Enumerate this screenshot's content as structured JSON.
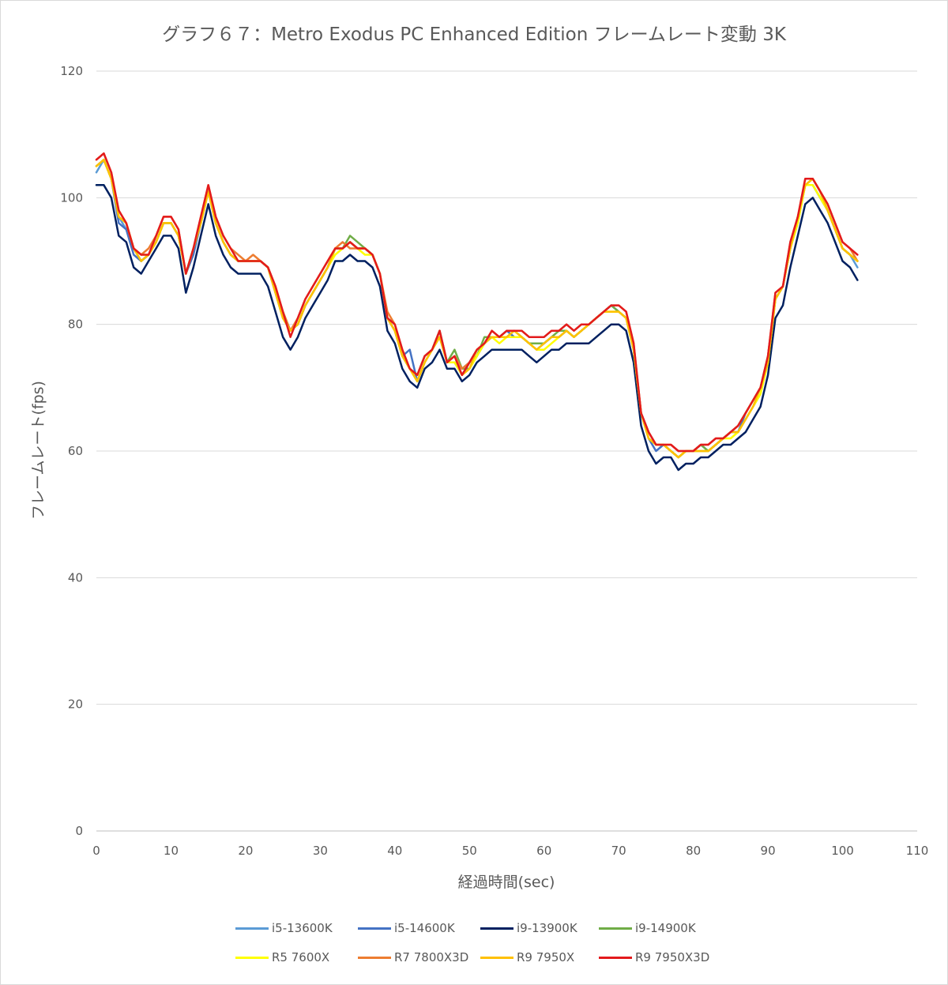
{
  "chart_data": {
    "type": "line",
    "title": "グラフ６７：Metro Exodus PC Enhanced Edition フレームレート変動 3K",
    "xlabel": "経過時間(sec)",
    "ylabel": "フレームレート(fps)",
    "xlim": [
      0,
      110
    ],
    "ylim": [
      0,
      120
    ],
    "xticks": [
      "0",
      "10",
      "20",
      "30",
      "40",
      "50",
      "60",
      "70",
      "80",
      "90",
      "100",
      "110"
    ],
    "yticks": [
      "0",
      "20",
      "40",
      "60",
      "80",
      "100",
      "120"
    ],
    "grid": "horizontal",
    "legend_position": "bottom",
    "x": [
      0,
      1,
      2,
      3,
      4,
      5,
      6,
      7,
      8,
      9,
      10,
      11,
      12,
      13,
      14,
      15,
      16,
      17,
      18,
      19,
      20,
      21,
      22,
      23,
      24,
      25,
      26,
      27,
      28,
      29,
      30,
      31,
      32,
      33,
      34,
      35,
      36,
      37,
      38,
      39,
      40,
      41,
      42,
      43,
      44,
      45,
      46,
      47,
      48,
      49,
      50,
      51,
      52,
      53,
      54,
      55,
      56,
      57,
      58,
      59,
      60,
      61,
      62,
      63,
      64,
      65,
      66,
      67,
      68,
      69,
      70,
      71,
      72,
      73,
      74,
      75,
      76,
      77,
      78,
      79,
      80,
      81,
      82,
      83,
      84,
      85,
      86,
      87,
      88,
      89,
      90,
      91,
      92,
      93,
      94,
      95,
      96,
      97,
      98,
      99,
      100,
      101,
      102
    ],
    "series": [
      {
        "name": "i5-13600K",
        "color": "#5b9bd5",
        "values": [
          104,
          106,
          103,
          97,
          95,
          92,
          90,
          91,
          93,
          96,
          96,
          94,
          88,
          92,
          96,
          101,
          96,
          93,
          91,
          90,
          90,
          90,
          90,
          89,
          85,
          81,
          79,
          80,
          83,
          85,
          87,
          89,
          92,
          92,
          93,
          92,
          92,
          91,
          88,
          81,
          79,
          75,
          73,
          72,
          75,
          76,
          79,
          74,
          75,
          73,
          74,
          76,
          77,
          78,
          78,
          79,
          78,
          78,
          77,
          76,
          77,
          78,
          78,
          79,
          78,
          79,
          80,
          81,
          82,
          83,
          82,
          81,
          76,
          66,
          63,
          61,
          61,
          60,
          59,
          60,
          60,
          61,
          60,
          61,
          62,
          63,
          63,
          65,
          67,
          69,
          74,
          84,
          86,
          92,
          96,
          102,
          102,
          100,
          98,
          95,
          92,
          91,
          89
        ]
      },
      {
        "name": "i5-14600K",
        "color": "#4472c4",
        "values": [
          105,
          106,
          103,
          96,
          95,
          91,
          90,
          91,
          93,
          96,
          96,
          94,
          88,
          91,
          96,
          101,
          96,
          93,
          91,
          90,
          90,
          90,
          90,
          89,
          85,
          81,
          79,
          80,
          83,
          85,
          87,
          89,
          92,
          92,
          93,
          92,
          92,
          91,
          88,
          81,
          79,
          75,
          76,
          71,
          74,
          76,
          78,
          74,
          74,
          72,
          74,
          75,
          77,
          78,
          78,
          79,
          78,
          78,
          77,
          77,
          77,
          78,
          78,
          79,
          78,
          79,
          80,
          81,
          82,
          83,
          82,
          81,
          76,
          66,
          62,
          60,
          61,
          60,
          59,
          60,
          60,
          60,
          60,
          61,
          62,
          63,
          63,
          66,
          68,
          70,
          75,
          84,
          86,
          92,
          97,
          102,
          102,
          100,
          98,
          95,
          92,
          91,
          90
        ]
      },
      {
        "name": "i9-13900K",
        "color": "#002060",
        "values": [
          102,
          102,
          100,
          94,
          93,
          89,
          88,
          90,
          92,
          94,
          94,
          92,
          85,
          89,
          94,
          99,
          94,
          91,
          89,
          88,
          88,
          88,
          88,
          86,
          82,
          78,
          76,
          78,
          81,
          83,
          85,
          87,
          90,
          90,
          91,
          90,
          90,
          89,
          86,
          79,
          77,
          73,
          71,
          70,
          73,
          74,
          76,
          73,
          73,
          71,
          72,
          74,
          75,
          76,
          76,
          76,
          76,
          76,
          75,
          74,
          75,
          76,
          76,
          77,
          77,
          77,
          77,
          78,
          79,
          80,
          80,
          79,
          74,
          64,
          60,
          58,
          59,
          59,
          57,
          58,
          58,
          59,
          59,
          60,
          61,
          61,
          62,
          63,
          65,
          67,
          72,
          81,
          83,
          89,
          94,
          99,
          100,
          98,
          96,
          93,
          90,
          89,
          87
        ]
      },
      {
        "name": "i9-14900K",
        "color": "#70ad47",
        "values": [
          105,
          106,
          103,
          97,
          96,
          92,
          90,
          91,
          93,
          96,
          96,
          94,
          88,
          92,
          96,
          101,
          96,
          93,
          91,
          90,
          90,
          90,
          90,
          89,
          85,
          82,
          79,
          80,
          83,
          85,
          87,
          89,
          92,
          92,
          94,
          93,
          92,
          91,
          88,
          81,
          79,
          75,
          73,
          72,
          75,
          76,
          79,
          74,
          76,
          73,
          73,
          75,
          78,
          78,
          78,
          78,
          79,
          78,
          77,
          77,
          77,
          78,
          79,
          79,
          78,
          79,
          80,
          81,
          82,
          83,
          82,
          81,
          76,
          66,
          62,
          61,
          61,
          60,
          59,
          60,
          60,
          61,
          60,
          61,
          62,
          63,
          64,
          66,
          68,
          70,
          75,
          84,
          86,
          92,
          97,
          102,
          103,
          101,
          98,
          95,
          92,
          91,
          90
        ]
      },
      {
        "name": "R5 7600X",
        "color": "#ffff00",
        "values": [
          105,
          106,
          103,
          97,
          96,
          92,
          91,
          91,
          93,
          96,
          96,
          94,
          88,
          92,
          96,
          101,
          96,
          93,
          91,
          90,
          90,
          90,
          90,
          89,
          85,
          81,
          79,
          80,
          83,
          85,
          87,
          89,
          91,
          92,
          93,
          92,
          91,
          91,
          88,
          81,
          79,
          75,
          73,
          71,
          74,
          76,
          78,
          74,
          74,
          72,
          73,
          75,
          77,
          78,
          77,
          78,
          78,
          78,
          77,
          76,
          76,
          77,
          78,
          79,
          78,
          79,
          80,
          81,
          82,
          82,
          82,
          81,
          76,
          66,
          62,
          61,
          61,
          60,
          59,
          60,
          60,
          60,
          60,
          61,
          62,
          62,
          63,
          65,
          67,
          69,
          74,
          84,
          86,
          92,
          96,
          102,
          102,
          100,
          98,
          95,
          92,
          91,
          90
        ]
      },
      {
        "name": "R7 7800X3D",
        "color": "#ed7d31",
        "values": [
          106,
          107,
          104,
          98,
          96,
          92,
          91,
          92,
          94,
          97,
          97,
          95,
          88,
          92,
          97,
          102,
          97,
          94,
          92,
          91,
          90,
          91,
          90,
          89,
          86,
          82,
          79,
          81,
          84,
          86,
          88,
          90,
          92,
          93,
          92,
          92,
          92,
          91,
          88,
          82,
          80,
          76,
          73,
          72,
          75,
          76,
          79,
          74,
          75,
          73,
          74,
          76,
          77,
          79,
          78,
          79,
          79,
          79,
          78,
          78,
          78,
          79,
          79,
          80,
          79,
          80,
          80,
          81,
          82,
          83,
          83,
          82,
          77,
          66,
          63,
          61,
          61,
          61,
          60,
          60,
          60,
          61,
          61,
          62,
          62,
          63,
          64,
          66,
          68,
          70,
          75,
          85,
          86,
          93,
          97,
          103,
          103,
          101,
          99,
          96,
          93,
          92,
          90
        ]
      },
      {
        "name": "R9 7950X",
        "color": "#ffc000",
        "values": [
          105,
          106,
          103,
          97,
          96,
          92,
          90,
          91,
          93,
          96,
          96,
          94,
          88,
          92,
          96,
          101,
          96,
          93,
          91,
          90,
          90,
          90,
          90,
          89,
          85,
          81,
          79,
          80,
          83,
          85,
          87,
          89,
          92,
          92,
          93,
          92,
          92,
          91,
          88,
          81,
          79,
          75,
          73,
          71,
          74,
          76,
          78,
          74,
          75,
          72,
          73,
          76,
          77,
          78,
          78,
          78,
          79,
          78,
          77,
          76,
          77,
          78,
          78,
          79,
          78,
          79,
          80,
          81,
          82,
          82,
          82,
          81,
          76,
          66,
          62,
          61,
          61,
          60,
          59,
          60,
          60,
          60,
          60,
          61,
          62,
          63,
          63,
          65,
          67,
          70,
          74,
          84,
          86,
          92,
          97,
          102,
          103,
          101,
          98,
          95,
          92,
          91,
          90
        ]
      },
      {
        "name": "R9 7950X3D",
        "color": "#e31a1c",
        "values": [
          106,
          107,
          104,
          98,
          96,
          92,
          91,
          91,
          94,
          97,
          97,
          95,
          88,
          92,
          97,
          102,
          97,
          94,
          92,
          90,
          90,
          90,
          90,
          89,
          86,
          82,
          78,
          81,
          84,
          86,
          88,
          90,
          92,
          92,
          93,
          92,
          92,
          91,
          88,
          81,
          80,
          76,
          73,
          72,
          75,
          76,
          79,
          74,
          75,
          72,
          74,
          76,
          77,
          79,
          78,
          79,
          79,
          79,
          78,
          78,
          78,
          79,
          79,
          80,
          79,
          80,
          80,
          81,
          82,
          83,
          83,
          82,
          77,
          66,
          63,
          61,
          61,
          61,
          60,
          60,
          60,
          61,
          61,
          62,
          62,
          63,
          64,
          66,
          68,
          70,
          75,
          85,
          86,
          93,
          97,
          103,
          103,
          101,
          99,
          96,
          93,
          92,
          91
        ]
      }
    ]
  }
}
